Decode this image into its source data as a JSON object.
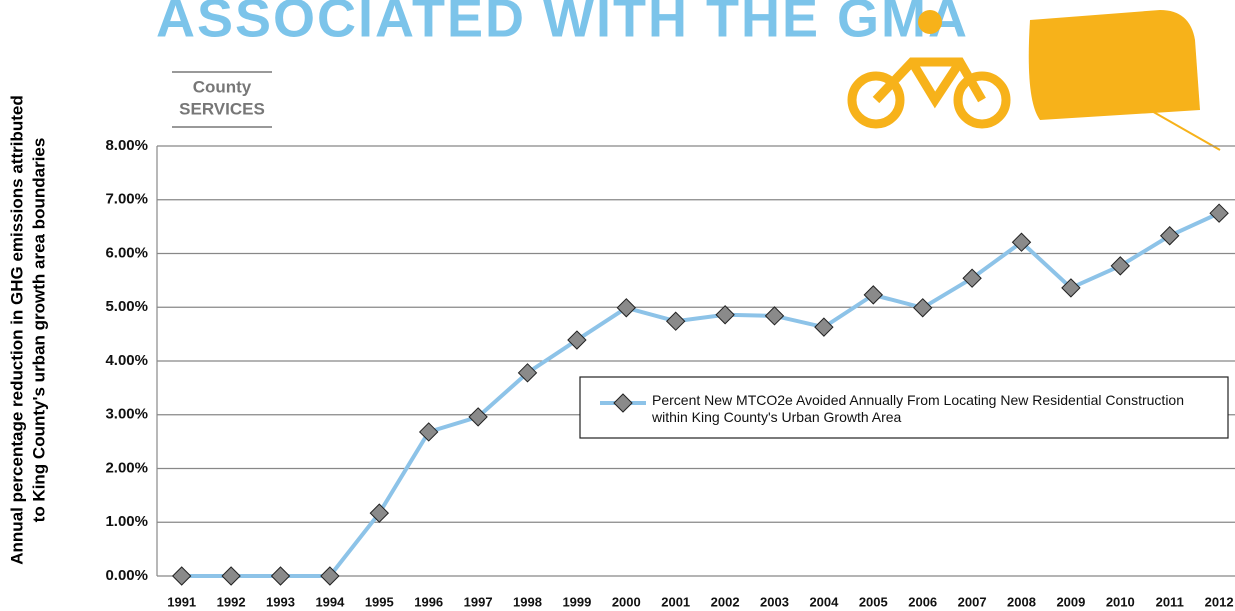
{
  "chart_data": {
    "type": "line",
    "title": "ASSOCIATED WITH THE GMA",
    "subtitle": [
      "County",
      "SERVICES"
    ],
    "ylabel": [
      "Annual percentage reduction in GHG emissions attributed",
      "to King County's urban growth area boundaries"
    ],
    "categories": [
      "1991",
      "1992",
      "1993",
      "1994",
      "1995",
      "1996",
      "1997",
      "1998",
      "1999",
      "2000",
      "2001",
      "2002",
      "2003",
      "2004",
      "2005",
      "2006",
      "2007",
      "2008",
      "2009",
      "2010",
      "2011",
      "2012"
    ],
    "series": [
      {
        "name": "Percent New MTCO2e Avoided Annually From Locating New Residential Construction within King County's Urban Growth Area",
        "color": "#8dc3e8",
        "marker_color": "#8a8a8a",
        "values": [
          0,
          0,
          0,
          0,
          1.17,
          2.68,
          2.96,
          3.78,
          4.39,
          4.99,
          4.74,
          4.86,
          4.84,
          4.63,
          5.23,
          4.99,
          5.54,
          6.21,
          5.36,
          5.77,
          6.33,
          6.75
        ]
      }
    ],
    "ylim": [
      0,
      8
    ],
    "yticks": [
      {
        "value": 0,
        "label": "0.00%"
      },
      {
        "value": 1,
        "label": "1.00%"
      },
      {
        "value": 2,
        "label": "2.00%"
      },
      {
        "value": 3,
        "label": "3.00%"
      },
      {
        "value": 4,
        "label": "4.00%"
      },
      {
        "value": 5,
        "label": "5.00%"
      },
      {
        "value": 6,
        "label": "6.00%"
      },
      {
        "value": 7,
        "label": "7.00%"
      },
      {
        "value": 8,
        "label": "8.00%"
      }
    ],
    "grid": true
  }
}
